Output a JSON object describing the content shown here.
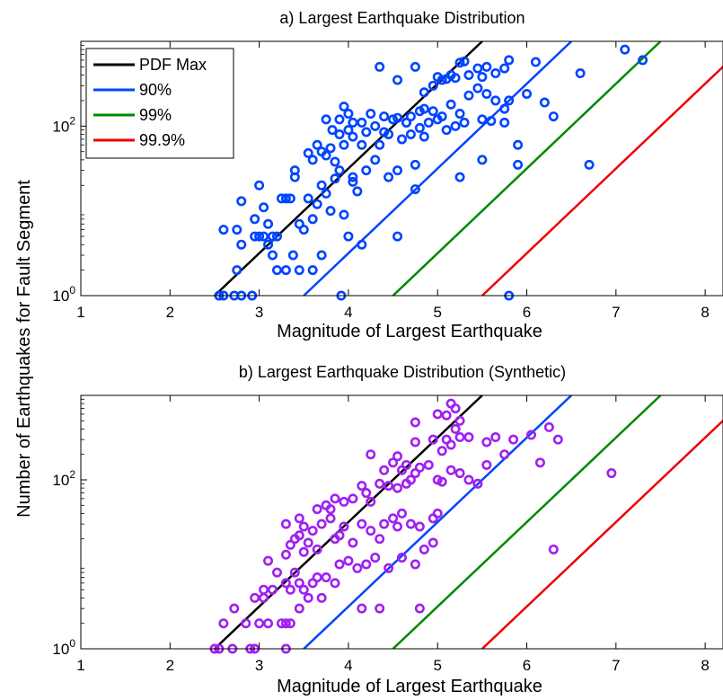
{
  "ylabel": "Number of Earthquakes for Fault Segment",
  "chart_data": [
    {
      "type": "scatter",
      "title": "a) Largest Earthquake Distribution",
      "xlabel": "Magnitude of Largest Earthquake",
      "ylabel": "Number of Earthquakes for Fault Segment",
      "xlim": [
        1,
        8.2
      ],
      "ylim": [
        1,
        1000
      ],
      "yscale": "log",
      "xticks": [
        "1",
        "2",
        "3",
        "4",
        "5",
        "6",
        "7",
        "8"
      ],
      "yticks": [
        {
          "base": "10",
          "exp": "0",
          "value": 1
        },
        {
          "base": "10",
          "exp": "2",
          "value": 100
        }
      ],
      "grid": false,
      "legend": {
        "location": "top-left",
        "entries": [
          "PDF Max",
          "90%",
          "99%",
          "99.9%"
        ]
      },
      "lines": [
        {
          "name": "PDF Max",
          "color": "#000000",
          "x": [
            2.5,
            5.5
          ],
          "y": [
            1,
            1000
          ]
        },
        {
          "name": "90%",
          "color": "#0044ff",
          "x": [
            3.5,
            6.5
          ],
          "y": [
            1,
            1000
          ]
        },
        {
          "name": "99%",
          "color": "#008800",
          "x": [
            4.5,
            7.5
          ],
          "y": [
            1,
            1000
          ]
        },
        {
          "name": "99.9%",
          "color": "#ee0000",
          "x": [
            5.5,
            8.5
          ],
          "y": [
            1,
            1000
          ]
        }
      ],
      "point_color": "#0044ff",
      "points": [
        [
          2.55,
          1
        ],
        [
          2.6,
          1
        ],
        [
          2.72,
          1
        ],
        [
          2.8,
          1
        ],
        [
          2.92,
          1
        ],
        [
          3.92,
          1
        ],
        [
          5.8,
          1
        ],
        [
          2.6,
          6
        ],
        [
          2.75,
          6
        ],
        [
          2.8,
          4
        ],
        [
          2.75,
          2
        ],
        [
          2.95,
          5
        ],
        [
          3.0,
          5
        ],
        [
          3.05,
          5
        ],
        [
          3.1,
          4
        ],
        [
          3.2,
          5
        ],
        [
          3.15,
          3
        ],
        [
          3.2,
          2
        ],
        [
          3.3,
          2
        ],
        [
          3.38,
          3
        ],
        [
          3.45,
          2
        ],
        [
          3.6,
          2
        ],
        [
          3.7,
          3
        ],
        [
          4.0,
          5
        ],
        [
          4.15,
          4
        ],
        [
          4.55,
          5
        ],
        [
          2.8,
          13
        ],
        [
          2.95,
          8
        ],
        [
          3.0,
          20
        ],
        [
          3.05,
          11
        ],
        [
          3.1,
          7
        ],
        [
          3.15,
          5
        ],
        [
          3.25,
          14
        ],
        [
          3.3,
          14
        ],
        [
          3.35,
          14
        ],
        [
          3.4,
          25
        ],
        [
          3.45,
          7
        ],
        [
          3.5,
          6
        ],
        [
          3.55,
          14
        ],
        [
          3.6,
          8
        ],
        [
          3.65,
          12
        ],
        [
          3.7,
          20
        ],
        [
          3.75,
          16
        ],
        [
          3.8,
          10
        ],
        [
          3.85,
          24
        ],
        [
          3.9,
          30
        ],
        [
          3.95,
          9
        ],
        [
          4.05,
          22
        ],
        [
          4.05,
          25
        ],
        [
          4.1,
          17
        ],
        [
          4.2,
          30
        ],
        [
          4.3,
          40
        ],
        [
          4.45,
          25
        ],
        [
          4.55,
          30
        ],
        [
          4.75,
          35
        ],
        [
          4.75,
          18
        ],
        [
          5.25,
          25
        ],
        [
          5.5,
          40
        ],
        [
          5.9,
          35
        ],
        [
          6.7,
          35
        ],
        [
          3.4,
          30
        ],
        [
          3.55,
          48
        ],
        [
          3.6,
          40
        ],
        [
          3.65,
          60
        ],
        [
          3.7,
          50
        ],
        [
          3.75,
          45
        ],
        [
          3.8,
          55
        ],
        [
          3.85,
          38
        ],
        [
          3.9,
          80
        ],
        [
          3.95,
          60
        ],
        [
          4.0,
          90
        ],
        [
          4.05,
          75
        ],
        [
          4.15,
          60
        ],
        [
          4.2,
          85
        ],
        [
          4.3,
          100
        ],
        [
          4.35,
          60
        ],
        [
          4.4,
          85
        ],
        [
          4.45,
          80
        ],
        [
          4.5,
          120
        ],
        [
          4.6,
          70
        ],
        [
          4.65,
          110
        ],
        [
          4.7,
          80
        ],
        [
          4.8,
          95
        ],
        [
          4.85,
          75
        ],
        [
          4.9,
          110
        ],
        [
          5.0,
          120
        ],
        [
          5.1,
          90
        ],
        [
          5.2,
          100
        ],
        [
          5.3,
          110
        ],
        [
          5.5,
          120
        ],
        [
          5.6,
          115
        ],
        [
          5.75,
          110
        ],
        [
          5.9,
          60
        ],
        [
          3.75,
          120
        ],
        [
          3.82,
          90
        ],
        [
          3.9,
          120
        ],
        [
          3.95,
          170
        ],
        [
          4.0,
          140
        ],
        [
          4.05,
          110
        ],
        [
          4.15,
          110
        ],
        [
          4.25,
          140
        ],
        [
          4.4,
          130
        ],
        [
          4.55,
          125
        ],
        [
          4.65,
          110
        ],
        [
          4.7,
          130
        ],
        [
          4.8,
          150
        ],
        [
          4.85,
          160
        ],
        [
          4.95,
          150
        ],
        [
          5.05,
          130
        ],
        [
          5.15,
          180
        ],
        [
          5.25,
          140
        ],
        [
          5.35,
          230
        ],
        [
          5.45,
          280
        ],
        [
          5.55,
          240
        ],
        [
          5.65,
          200
        ],
        [
          5.75,
          160
        ],
        [
          5.8,
          200
        ],
        [
          6.0,
          240
        ],
        [
          6.2,
          190
        ],
        [
          6.3,
          130
        ],
        [
          4.35,
          500
        ],
        [
          4.55,
          350
        ],
        [
          4.75,
          500
        ],
        [
          4.85,
          250
        ],
        [
          4.95,
          300
        ],
        [
          5.0,
          380
        ],
        [
          5.05,
          350
        ],
        [
          5.1,
          360
        ],
        [
          5.15,
          400
        ],
        [
          5.2,
          370
        ],
        [
          5.25,
          560
        ],
        [
          5.3,
          580
        ],
        [
          5.35,
          400
        ],
        [
          5.45,
          480
        ],
        [
          5.5,
          380
        ],
        [
          5.55,
          500
        ],
        [
          5.65,
          420
        ],
        [
          5.75,
          480
        ],
        [
          5.8,
          600
        ],
        [
          6.1,
          570
        ],
        [
          6.6,
          420
        ],
        [
          7.1,
          800
        ],
        [
          7.3,
          600
        ]
      ]
    },
    {
      "type": "scatter",
      "title": "b) Largest Earthquake Distribution (Synthetic)",
      "xlabel": "Magnitude of Largest Earthquake",
      "ylabel": "Number of Earthquakes for Fault Segment",
      "xlim": [
        1,
        8.2
      ],
      "ylim": [
        1,
        1000
      ],
      "yscale": "log",
      "xticks": [
        "1",
        "2",
        "3",
        "4",
        "5",
        "6",
        "7",
        "8"
      ],
      "yticks": [
        {
          "base": "10",
          "exp": "0",
          "value": 1
        },
        {
          "base": "10",
          "exp": "2",
          "value": 100
        }
      ],
      "grid": false,
      "lines": [
        {
          "name": "PDF Max",
          "color": "#000000",
          "x": [
            2.5,
            5.5
          ],
          "y": [
            1,
            1000
          ]
        },
        {
          "name": "90%",
          "color": "#0044ff",
          "x": [
            3.5,
            6.5
          ],
          "y": [
            1,
            1000
          ]
        },
        {
          "name": "99%",
          "color": "#008800",
          "x": [
            4.5,
            7.5
          ],
          "y": [
            1,
            1000
          ]
        },
        {
          "name": "99.9%",
          "color": "#ee0000",
          "x": [
            5.5,
            8.5
          ],
          "y": [
            1,
            1000
          ]
        }
      ],
      "point_color": "#a020f0",
      "points": [
        [
          2.5,
          1
        ],
        [
          2.55,
          1
        ],
        [
          2.7,
          1
        ],
        [
          2.9,
          1
        ],
        [
          2.95,
          1
        ],
        [
          3.3,
          1
        ],
        [
          2.6,
          2
        ],
        [
          2.72,
          3
        ],
        [
          2.85,
          2
        ],
        [
          3.0,
          2
        ],
        [
          3.05,
          4
        ],
        [
          3.1,
          2
        ],
        [
          3.25,
          2
        ],
        [
          3.3,
          2
        ],
        [
          3.35,
          2
        ],
        [
          3.45,
          3
        ],
        [
          3.5,
          5
        ],
        [
          3.55,
          4
        ],
        [
          3.7,
          4
        ],
        [
          4.15,
          3
        ],
        [
          4.35,
          3
        ],
        [
          4.8,
          3
        ],
        [
          2.95,
          4
        ],
        [
          3.05,
          5
        ],
        [
          3.15,
          5
        ],
        [
          3.2,
          8
        ],
        [
          3.3,
          6
        ],
        [
          3.35,
          5
        ],
        [
          3.4,
          8
        ],
        [
          3.45,
          6
        ],
        [
          3.6,
          6
        ],
        [
          3.65,
          7
        ],
        [
          3.75,
          7
        ],
        [
          3.85,
          6
        ],
        [
          3.9,
          10
        ],
        [
          4.0,
          11
        ],
        [
          4.1,
          9
        ],
        [
          4.2,
          10
        ],
        [
          4.3,
          12
        ],
        [
          4.45,
          9
        ],
        [
          4.6,
          12
        ],
        [
          4.75,
          10
        ],
        [
          4.85,
          15
        ],
        [
          4.95,
          18
        ],
        [
          3.1,
          11
        ],
        [
          3.3,
          13
        ],
        [
          3.35,
          17
        ],
        [
          3.4,
          20
        ],
        [
          3.45,
          22
        ],
        [
          3.5,
          14
        ],
        [
          3.55,
          18
        ],
        [
          3.6,
          25
        ],
        [
          3.65,
          15
        ],
        [
          3.7,
          30
        ],
        [
          3.8,
          35
        ],
        [
          3.85,
          20
        ],
        [
          3.9,
          22
        ],
        [
          3.95,
          28
        ],
        [
          4.05,
          18
        ],
        [
          4.15,
          30
        ],
        [
          4.25,
          25
        ],
        [
          4.35,
          20
        ],
        [
          4.4,
          30
        ],
        [
          4.5,
          35
        ],
        [
          4.55,
          28
        ],
        [
          4.6,
          40
        ],
        [
          4.7,
          30
        ],
        [
          4.8,
          28
        ],
        [
          4.95,
          35
        ],
        [
          5.0,
          40
        ],
        [
          6.3,
          15
        ],
        [
          3.3,
          30
        ],
        [
          3.45,
          35
        ],
        [
          3.5,
          28
        ],
        [
          3.65,
          45
        ],
        [
          3.75,
          50
        ],
        [
          3.8,
          45
        ],
        [
          3.85,
          60
        ],
        [
          3.95,
          55
        ],
        [
          4.05,
          60
        ],
        [
          4.15,
          85
        ],
        [
          4.2,
          70
        ],
        [
          4.25,
          55
        ],
        [
          4.35,
          90
        ],
        [
          4.45,
          85
        ],
        [
          4.55,
          80
        ],
        [
          4.6,
          130
        ],
        [
          4.65,
          90
        ],
        [
          4.7,
          100
        ],
        [
          4.75,
          120
        ],
        [
          4.8,
          140
        ],
        [
          4.9,
          150
        ],
        [
          5.0,
          100
        ],
        [
          5.05,
          95
        ],
        [
          5.15,
          130
        ],
        [
          5.25,
          120
        ],
        [
          5.35,
          100
        ],
        [
          5.45,
          90
        ],
        [
          5.55,
          150
        ],
        [
          5.75,
          200
        ],
        [
          6.15,
          160
        ],
        [
          6.95,
          120
        ],
        [
          4.25,
          200
        ],
        [
          4.4,
          130
        ],
        [
          4.5,
          160
        ],
        [
          4.55,
          190
        ],
        [
          4.65,
          150
        ],
        [
          4.75,
          280
        ],
        [
          4.95,
          300
        ],
        [
          5.05,
          220
        ],
        [
          5.1,
          300
        ],
        [
          5.15,
          260
        ],
        [
          5.2,
          400
        ],
        [
          5.25,
          320
        ],
        [
          5.35,
          320
        ],
        [
          5.55,
          280
        ],
        [
          5.65,
          320
        ],
        [
          5.85,
          300
        ],
        [
          6.05,
          340
        ],
        [
          6.25,
          420
        ],
        [
          6.35,
          300
        ],
        [
          4.75,
          480
        ],
        [
          5.0,
          600
        ],
        [
          5.1,
          580
        ],
        [
          5.15,
          800
        ],
        [
          5.2,
          700
        ],
        [
          5.25,
          500
        ]
      ]
    }
  ]
}
